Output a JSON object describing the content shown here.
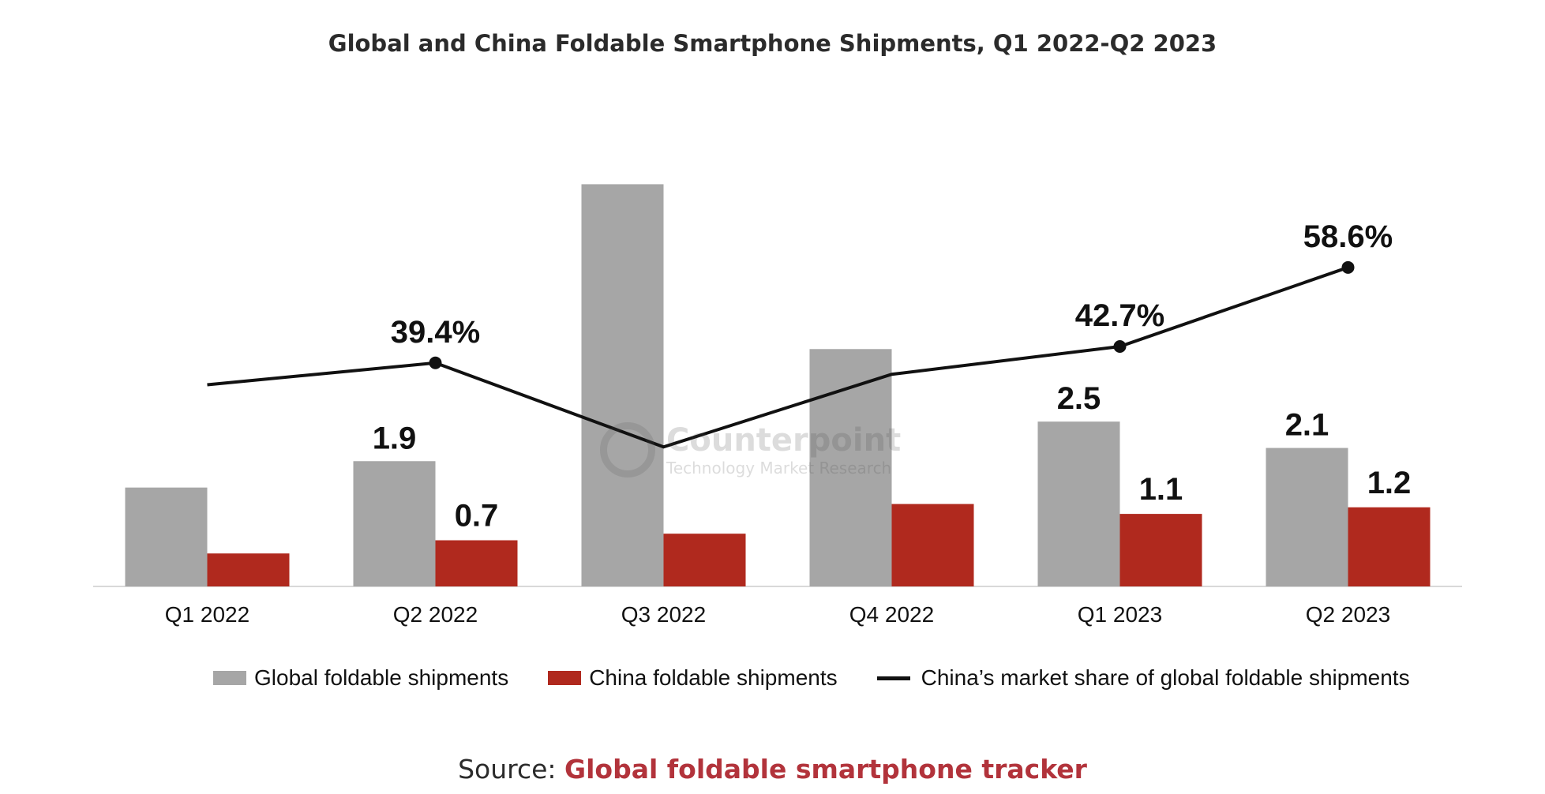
{
  "title": "Global and China Foldable Smartphone Shipments, Q1 2022-Q2 2023",
  "watermark": {
    "name": "Counterpoint",
    "tagline": "Technology Market Research"
  },
  "source": {
    "label": "Source:",
    "link_text": "Global foldable smartphone tracker"
  },
  "colors": {
    "global": "#a6a6a6",
    "china": "#b0291e",
    "share": "#111111",
    "source_link": "#b2333b"
  },
  "chart_data": {
    "type": "bar",
    "title": "Global and China Foldable Smartphone Shipments, Q1 2022-Q2 2023",
    "categories": [
      "Q1 2022",
      "Q2 2022",
      "Q3 2022",
      "Q4 2022",
      "Q1 2023",
      "Q2 2023"
    ],
    "ylim": [
      0,
      6.5
    ],
    "legend_position": "bottom",
    "grid": false,
    "series": [
      {
        "name": "Global foldable shipments",
        "type": "bar",
        "values": [
          1.5,
          1.9,
          6.1,
          3.6,
          2.5,
          2.1
        ],
        "labels": [
          "",
          "1.9",
          "",
          "",
          "2.5",
          "2.1"
        ]
      },
      {
        "name": "China foldable shipments",
        "type": "bar",
        "values": [
          0.5,
          0.7,
          0.8,
          1.25,
          1.1,
          1.2
        ],
        "labels": [
          "",
          "0.7",
          "",
          "",
          "1.1",
          "1.2"
        ]
      },
      {
        "name": "China’s market share of global foldable shipments",
        "type": "line",
        "axis": "secondary",
        "unit": "%",
        "values": [
          35,
          39.4,
          22.5,
          37.1,
          42.7,
          58.6
        ],
        "labels": [
          "",
          "39.4%",
          "",
          "",
          "42.7%",
          "58.6%"
        ],
        "markers": [
          false,
          true,
          false,
          false,
          true,
          true
        ],
        "ylim": [
          0,
          100
        ]
      }
    ]
  }
}
